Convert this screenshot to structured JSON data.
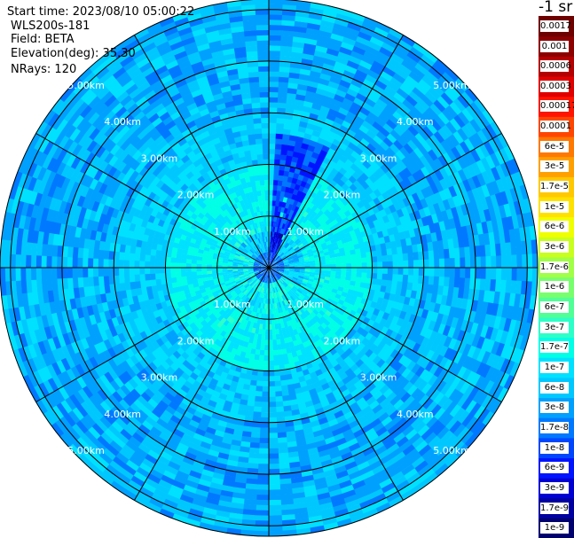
{
  "info": {
    "lines": [
      "Start time: 2023/08/10 05:00:22",
      "WLS200s-181",
      "Field: BETA",
      "Elevation(deg): 35.30",
      "NRays: 120"
    ]
  },
  "chart_data": {
    "type": "heatmap",
    "subtype": "polar-ppi",
    "field": "BETA",
    "unit_label": "-1 sr",
    "range_rings_km": [
      1,
      2,
      3,
      4,
      5
    ],
    "ring_labels": [
      "1.00km",
      "2.00km",
      "3.00km",
      "4.00km",
      "5.00km"
    ],
    "max_range_km": 5.2,
    "azimuth_lines_deg": [
      0,
      30,
      60,
      90,
      120,
      150,
      180,
      210,
      240,
      270,
      300,
      330
    ],
    "n_rays": 120,
    "colorbar": {
      "ticks": [
        "1e-9",
        "1.7e-9",
        "3e-9",
        "6e-9",
        "1e-8",
        "1.7e-8",
        "3e-8",
        "6e-8",
        "1e-7",
        "1.7e-7",
        "3e-7",
        "6e-7",
        "1e-6",
        "1.7e-6",
        "3e-6",
        "6e-6",
        "1e-5",
        "1.7e-5",
        "3e-5",
        "6e-5",
        "0.0001",
        "0.00017",
        "0.0003",
        "0.0006",
        "0.001",
        "0.0017"
      ],
      "colors": [
        "#00006e",
        "#0000a0",
        "#0000d2",
        "#0014ff",
        "#0046ff",
        "#0078ff",
        "#00a0ff",
        "#00c8ff",
        "#00e1ff",
        "#00ffe6",
        "#2dffc8",
        "#50ff96",
        "#78ff6e",
        "#a0ff46",
        "#c8ff1e",
        "#f0ff00",
        "#ffe100",
        "#ffc800",
        "#ffa000",
        "#ff7800",
        "#ff4600",
        "#ff1400",
        "#e10000",
        "#b40000",
        "#8c0000",
        "#6e0000"
      ]
    },
    "description_of_pattern": {
      "background_level": "3e-8",
      "near_range_level": "1.7e-7",
      "sector_low_level": "6e-9"
    }
  }
}
